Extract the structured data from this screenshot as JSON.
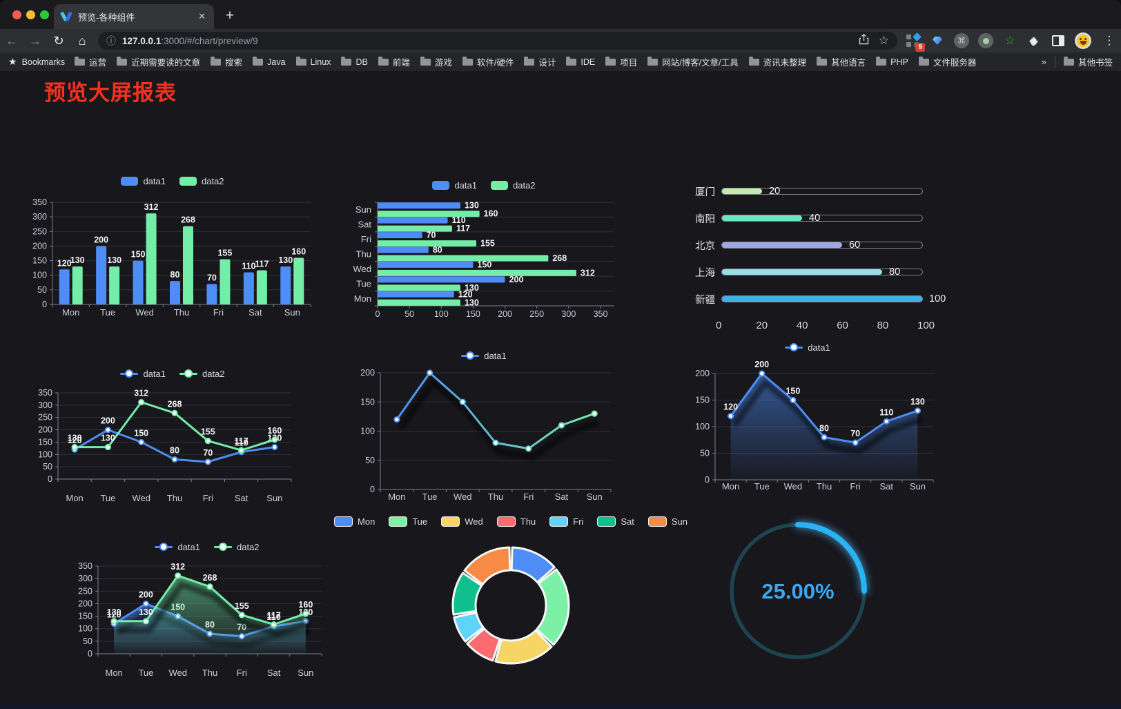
{
  "browser": {
    "tab_title": "预览-各种组件",
    "new_tab": "+",
    "close_tab": "✕",
    "url_host": "127.0.0.1",
    "url_rest": ":3000/#/chart/preview/9",
    "back": "←",
    "forward": "→",
    "reload": "↻",
    "home": "⌂",
    "info": "ⓘ",
    "star": "☆",
    "menu": "⋮",
    "extension_badge": "9",
    "bookmarks_label": "Bookmarks",
    "bookmarks": [
      "运营",
      "近期需要读的文章",
      "搜索",
      "Java",
      "Linux",
      "DB",
      "前端",
      "游戏",
      "软件/硬件",
      "设计",
      "IDE",
      "项目",
      "网站/博客/文章/工具",
      "资讯未整理",
      "其他语言",
      "PHP",
      "文件服务器"
    ],
    "bookmarks_overflow": "»",
    "other_bookmarks": "其他书签"
  },
  "page": {
    "title": "预览大屏报表",
    "title_color": "#f5321f",
    "background": "#17171c"
  },
  "chart_data": [
    {
      "id": "bar-grouped",
      "type": "bar",
      "legend_position": "top",
      "grid": true,
      "categories": [
        "Mon",
        "Tue",
        "Wed",
        "Thu",
        "Fri",
        "Sat",
        "Sun"
      ],
      "series": [
        {
          "name": "data1",
          "color": "#4e8df6",
          "values": [
            120,
            200,
            150,
            80,
            70,
            110,
            130
          ]
        },
        {
          "name": "data2",
          "color": "#74eda9",
          "values": [
            130,
            130,
            312,
            268,
            155,
            117,
            160
          ]
        }
      ],
      "ylim": [
        0,
        350
      ],
      "ytick_step": 50
    },
    {
      "id": "bar-horizontal",
      "type": "bar",
      "orientation": "horizontal",
      "legend_position": "top",
      "categories": [
        "Mon",
        "Tue",
        "Wed",
        "Thu",
        "Fri",
        "Sat",
        "Sun"
      ],
      "series": [
        {
          "name": "data1",
          "color": "#4e8df6",
          "values": [
            120,
            200,
            150,
            80,
            70,
            110,
            130
          ]
        },
        {
          "name": "data2",
          "color": "#74eda9",
          "values": [
            130,
            130,
            312,
            268,
            155,
            117,
            160
          ]
        }
      ],
      "xlim": [
        0,
        350
      ],
      "xtick_step": 50
    },
    {
      "id": "city-progress",
      "type": "bar",
      "orientation": "progress",
      "items": [
        {
          "label": "厦门",
          "value": 20,
          "color": "#c4ebad"
        },
        {
          "label": "南阳",
          "value": 40,
          "color": "#6be6c1"
        },
        {
          "label": "北京",
          "value": 60,
          "color": "#a0a7e6"
        },
        {
          "label": "上海",
          "value": 80,
          "color": "#96dee8"
        },
        {
          "label": "新疆",
          "value": 100,
          "color": "#3fb1e3"
        }
      ],
      "xlim": [
        0,
        100
      ],
      "xticks": [
        0,
        20,
        40,
        60,
        80,
        100
      ]
    },
    {
      "id": "line-two",
      "type": "line",
      "legend_position": "top",
      "show_labels": true,
      "categories": [
        "Mon",
        "Tue",
        "Wed",
        "Thu",
        "Fri",
        "Sat",
        "Sun"
      ],
      "series": [
        {
          "name": "data1",
          "color": "#4e8df6",
          "values": [
            120,
            200,
            150,
            80,
            70,
            110,
            130
          ]
        },
        {
          "name": "data2",
          "color": "#74eda9",
          "values": [
            130,
            130,
            312,
            268,
            155,
            117,
            160
          ]
        }
      ],
      "ylim": [
        0,
        350
      ],
      "ytick_step": 50
    },
    {
      "id": "line-gradient",
      "type": "line",
      "legend_position": "top",
      "show_labels": false,
      "gradient_line": true,
      "shadow": true,
      "categories": [
        "Mon",
        "Tue",
        "Wed",
        "Thu",
        "Fri",
        "Sat",
        "Sun"
      ],
      "series": [
        {
          "name": "data1",
          "color": "#4e8df6",
          "color_end": "#74eda9",
          "values": [
            120,
            200,
            150,
            80,
            70,
            110,
            130
          ]
        }
      ],
      "ylim": [
        0,
        200
      ],
      "ytick_step": 50
    },
    {
      "id": "area-one",
      "type": "area",
      "legend_position": "top",
      "show_labels": true,
      "shadow": true,
      "categories": [
        "Mon",
        "Tue",
        "Wed",
        "Thu",
        "Fri",
        "Sat",
        "Sun"
      ],
      "series": [
        {
          "name": "data1",
          "color": "#4e8df6",
          "values": [
            120,
            200,
            150,
            80,
            70,
            110,
            130
          ]
        }
      ],
      "ylim": [
        0,
        200
      ],
      "ytick_step": 50
    },
    {
      "id": "area-two",
      "type": "area",
      "legend_position": "top",
      "show_labels": true,
      "shadow": true,
      "categories": [
        "Mon",
        "Tue",
        "Wed",
        "Thu",
        "Fri",
        "Sat",
        "Sun"
      ],
      "series": [
        {
          "name": "data1",
          "color": "#4e8df6",
          "values": [
            120,
            200,
            150,
            80,
            70,
            110,
            130
          ]
        },
        {
          "name": "data2",
          "color": "#74eda9",
          "values": [
            130,
            130,
            312,
            268,
            155,
            117,
            160
          ]
        }
      ],
      "ylim": [
        0,
        350
      ],
      "ytick_step": 50
    },
    {
      "id": "donut",
      "type": "pie",
      "legend_position": "top",
      "inner_radius_ratio": 0.61,
      "labels": [
        "Mon",
        "Tue",
        "Wed",
        "Thu",
        "Fri",
        "Sat",
        "Sun"
      ],
      "values": [
        120,
        200,
        150,
        80,
        70,
        110,
        130
      ],
      "colors": [
        "#4d8df5",
        "#7cf0a6",
        "#f6d565",
        "#fa6b70",
        "#5fd3f8",
        "#10c08c",
        "#f78b46"
      ],
      "border_color": "#f7f8f8"
    },
    {
      "id": "gauge",
      "type": "gauge",
      "value": 25,
      "max": 100,
      "display": "25.00%",
      "arc_color": "#29b2f4",
      "track_color": "#1e4450",
      "text_color": "#3fa6ed"
    }
  ]
}
